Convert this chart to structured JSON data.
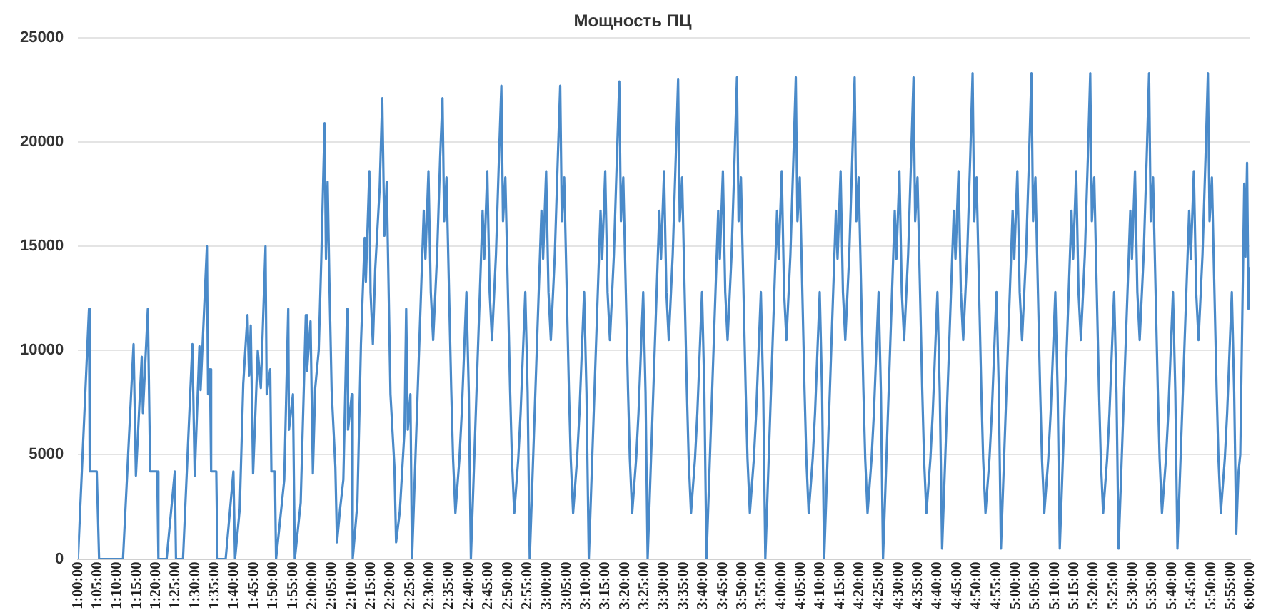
{
  "chart_data": {
    "type": "line",
    "title": "Мощность ПЦ",
    "color": "#4a8ac9",
    "grid": "y",
    "legend": false,
    "marker": "none",
    "line_style": "solid",
    "xlim": [
      1,
      6
    ],
    "ylim": [
      0,
      25000
    ],
    "yticks": [
      0,
      5000,
      10000,
      15000,
      20000,
      25000
    ],
    "xticks": [
      {
        "value": 1,
        "label": "1:00:00"
      },
      {
        "value": 1.083333,
        "label": "1:05:00"
      },
      {
        "value": 1.166667,
        "label": "1:10:00"
      },
      {
        "value": 1.25,
        "label": "1:15:00"
      },
      {
        "value": 1.333333,
        "label": "1:20:00"
      },
      {
        "value": 1.416667,
        "label": "1:25:00"
      },
      {
        "value": 1.5,
        "label": "1:30:00"
      },
      {
        "value": 1.583333,
        "label": "1:35:00"
      },
      {
        "value": 1.666667,
        "label": "1:40:00"
      },
      {
        "value": 1.75,
        "label": "1:45:00"
      },
      {
        "value": 1.833333,
        "label": "1:50:00"
      },
      {
        "value": 1.916667,
        "label": "1:55:00"
      },
      {
        "value": 2,
        "label": "2:00:00"
      },
      {
        "value": 2.083333,
        "label": "2:05:00"
      },
      {
        "value": 2.166667,
        "label": "2:10:00"
      },
      {
        "value": 2.25,
        "label": "2:15:00"
      },
      {
        "value": 2.333333,
        "label": "2:20:00"
      },
      {
        "value": 2.416667,
        "label": "2:25:00"
      },
      {
        "value": 2.5,
        "label": "2:30:00"
      },
      {
        "value": 2.583333,
        "label": "2:35:00"
      },
      {
        "value": 2.666667,
        "label": "2:40:00"
      },
      {
        "value": 2.75,
        "label": "2:45:00"
      },
      {
        "value": 2.833333,
        "label": "2:50:00"
      },
      {
        "value": 2.916667,
        "label": "2:55:00"
      },
      {
        "value": 3,
        "label": "3:00:00"
      },
      {
        "value": 3.083333,
        "label": "3:05:00"
      },
      {
        "value": 3.166667,
        "label": "3:10:00"
      },
      {
        "value": 3.25,
        "label": "3:15:00"
      },
      {
        "value": 3.333333,
        "label": "3:20:00"
      },
      {
        "value": 3.416667,
        "label": "3:25:00"
      },
      {
        "value": 3.5,
        "label": "3:30:00"
      },
      {
        "value": 3.583333,
        "label": "3:35:00"
      },
      {
        "value": 3.666667,
        "label": "3:40:00"
      },
      {
        "value": 3.75,
        "label": "3:45:00"
      },
      {
        "value": 3.833333,
        "label": "3:50:00"
      },
      {
        "value": 3.916667,
        "label": "3:55:00"
      },
      {
        "value": 4,
        "label": "4:00:00"
      },
      {
        "value": 4.083333,
        "label": "4:05:00"
      },
      {
        "value": 4.166667,
        "label": "4:10:00"
      },
      {
        "value": 4.25,
        "label": "4:15:00"
      },
      {
        "value": 4.333333,
        "label": "4:20:00"
      },
      {
        "value": 4.416667,
        "label": "4:25:00"
      },
      {
        "value": 4.5,
        "label": "4:30:00"
      },
      {
        "value": 4.583333,
        "label": "4:35:00"
      },
      {
        "value": 4.666667,
        "label": "4:40:00"
      },
      {
        "value": 4.75,
        "label": "4:45:00"
      },
      {
        "value": 4.833333,
        "label": "4:50:00"
      },
      {
        "value": 4.916667,
        "label": "4:55:00"
      },
      {
        "value": 5,
        "label": "5:00:00"
      },
      {
        "value": 5.083333,
        "label": "5:05:00"
      },
      {
        "value": 5.166667,
        "label": "5:10:00"
      },
      {
        "value": 5.25,
        "label": "5:15:00"
      },
      {
        "value": 5.333333,
        "label": "5:20:00"
      },
      {
        "value": 5.416667,
        "label": "5:25:00"
      },
      {
        "value": 5.5,
        "label": "5:30:00"
      },
      {
        "value": 5.583333,
        "label": "5:35:00"
      },
      {
        "value": 5.666667,
        "label": "5:40:00"
      },
      {
        "value": 5.75,
        "label": "5:45:00"
      },
      {
        "value": 5.833333,
        "label": "5:50:00"
      },
      {
        "value": 5.916667,
        "label": "5:55:00"
      },
      {
        "value": 6,
        "label": "6:00:00"
      }
    ],
    "x": [
      1.0,
      1.047,
      1.05,
      1.08,
      1.09,
      1.192,
      1.237,
      1.247,
      1.272,
      1.277,
      1.298,
      1.308,
      1.338,
      1.343,
      1.378,
      1.413,
      1.418,
      1.448,
      1.488,
      1.498,
      1.518,
      1.523,
      1.55,
      1.555,
      1.563,
      1.568,
      1.59,
      1.595,
      1.63,
      1.663,
      1.67,
      1.69,
      1.705,
      1.723,
      1.73,
      1.737,
      1.747,
      1.767,
      1.78,
      1.8,
      1.805,
      1.82,
      1.825,
      1.84,
      1.845,
      1.88,
      1.897,
      1.9,
      1.917,
      1.925,
      1.95,
      1.972,
      1.977,
      1.992,
      2.002,
      2.012,
      2.027,
      2.038,
      2.052,
      2.058,
      2.065,
      2.072,
      2.082,
      2.098,
      2.105,
      2.118,
      2.132,
      2.148,
      2.152,
      2.168,
      2.172,
      2.192,
      2.207,
      2.223,
      2.228,
      2.243,
      2.248,
      2.258,
      2.268,
      2.287,
      2.298,
      2.307,
      2.317,
      2.333,
      2.35,
      2.357,
      2.373,
      2.393,
      2.4,
      2.407,
      2.418,
      2.425,
      2.475,
      2.482,
      2.495,
      2.505,
      2.515,
      2.532,
      2.545,
      2.555,
      2.562,
      2.572,
      2.592,
      2.6,
      2.61,
      2.627,
      2.637,
      2.657,
      2.667,
      2.676,
      2.726,
      2.733,
      2.746,
      2.756,
      2.766,
      2.783,
      2.796,
      2.806,
      2.813,
      2.823,
      2.843,
      2.851,
      2.861,
      2.878,
      2.888,
      2.908,
      2.918,
      2.927,
      2.977,
      2.984,
      2.997,
      3.007,
      3.017,
      3.034,
      3.047,
      3.057,
      3.064,
      3.074,
      3.094,
      3.102,
      3.112,
      3.129,
      3.139,
      3.159,
      3.169,
      3.179,
      3.229,
      3.236,
      3.249,
      3.259,
      3.269,
      3.286,
      3.299,
      3.309,
      3.316,
      3.326,
      3.346,
      3.354,
      3.364,
      3.381,
      3.391,
      3.411,
      3.421,
      3.43,
      3.48,
      3.487,
      3.5,
      3.51,
      3.52,
      3.537,
      3.55,
      3.56,
      3.567,
      3.577,
      3.597,
      3.605,
      3.615,
      3.632,
      3.642,
      3.662,
      3.672,
      3.681,
      3.731,
      3.738,
      3.751,
      3.761,
      3.771,
      3.788,
      3.801,
      3.811,
      3.818,
      3.828,
      3.848,
      3.856,
      3.866,
      3.883,
      3.893,
      3.913,
      3.923,
      3.932,
      3.982,
      3.989,
      4.002,
      4.012,
      4.022,
      4.039,
      4.052,
      4.062,
      4.069,
      4.079,
      4.099,
      4.107,
      4.117,
      4.134,
      4.144,
      4.164,
      4.174,
      4.183,
      4.233,
      4.24,
      4.253,
      4.263,
      4.273,
      4.29,
      4.303,
      4.313,
      4.32,
      4.33,
      4.35,
      4.358,
      4.368,
      4.385,
      4.395,
      4.415,
      4.425,
      4.434,
      4.484,
      4.491,
      4.504,
      4.514,
      4.524,
      4.541,
      4.554,
      4.564,
      4.571,
      4.581,
      4.601,
      4.609,
      4.619,
      4.636,
      4.646,
      4.666,
      4.676,
      4.686,
      4.736,
      4.743,
      4.756,
      4.766,
      4.776,
      4.793,
      4.806,
      4.816,
      4.823,
      4.833,
      4.853,
      4.861,
      4.871,
      4.888,
      4.898,
      4.918,
      4.928,
      4.937,
      4.987,
      4.994,
      5.007,
      5.017,
      5.027,
      5.044,
      5.057,
      5.067,
      5.074,
      5.084,
      5.104,
      5.112,
      5.122,
      5.139,
      5.149,
      5.169,
      5.179,
      5.188,
      5.238,
      5.245,
      5.258,
      5.268,
      5.278,
      5.295,
      5.308,
      5.318,
      5.325,
      5.335,
      5.355,
      5.363,
      5.373,
      5.39,
      5.4,
      5.42,
      5.43,
      5.439,
      5.489,
      5.496,
      5.509,
      5.519,
      5.529,
      5.546,
      5.559,
      5.569,
      5.576,
      5.586,
      5.606,
      5.614,
      5.624,
      5.641,
      5.651,
      5.671,
      5.681,
      5.69,
      5.74,
      5.747,
      5.76,
      5.77,
      5.78,
      5.797,
      5.81,
      5.82,
      5.827,
      5.837,
      5.857,
      5.865,
      5.875,
      5.892,
      5.902,
      5.922,
      5.932,
      5.941,
      5.95,
      5.958,
      5.975,
      5.98,
      5.987,
      5.993,
      6.0
    ],
    "values": [
      0,
      12000,
      4200,
      4200,
      0,
      0,
      10300,
      4000,
      9700,
      7000,
      12000,
      4200,
      4200,
      0,
      0,
      4200,
      0,
      0,
      10300,
      4000,
      10200,
      8100,
      15000,
      7900,
      9100,
      4200,
      4200,
      0,
      0,
      4200,
      0,
      2400,
      8400,
      11700,
      8800,
      11200,
      4100,
      10000,
      8200,
      15000,
      7900,
      9100,
      4200,
      4200,
      0,
      3800,
      12000,
      6200,
      7900,
      0,
      2700,
      11700,
      9000,
      11400,
      4100,
      8200,
      10000,
      14400,
      20900,
      14400,
      18100,
      13600,
      8100,
      4400,
      800,
      2400,
      3800,
      12000,
      6200,
      7900,
      0,
      2700,
      10300,
      15400,
      13300,
      18600,
      12800,
      10300,
      13900,
      17800,
      22100,
      15500,
      18100,
      7900,
      4400,
      800,
      2300,
      6200,
      12000,
      6200,
      7900,
      0,
      16700,
      14400,
      18600,
      12800,
      10500,
      14600,
      19300,
      22100,
      16200,
      18300,
      8200,
      4800,
      2200,
      4800,
      7000,
      12800,
      8000,
      0,
      16700,
      14400,
      18600,
      12800,
      10500,
      14600,
      19300,
      22700,
      16200,
      18300,
      8200,
      4800,
      2200,
      4800,
      7000,
      12800,
      8000,
      0,
      16700,
      14400,
      18600,
      12800,
      10500,
      14600,
      19300,
      22700,
      16200,
      18300,
      8200,
      4800,
      2200,
      4800,
      7000,
      12800,
      8000,
      0,
      16700,
      14400,
      18600,
      12800,
      10500,
      14600,
      19300,
      22900,
      16200,
      18300,
      8200,
      4800,
      2200,
      4800,
      7000,
      12800,
      8000,
      0,
      16700,
      14400,
      18600,
      12800,
      10500,
      14600,
      19300,
      23000,
      16200,
      18300,
      8200,
      4800,
      2200,
      4800,
      7000,
      12800,
      8000,
      0,
      16700,
      14400,
      18600,
      12800,
      10500,
      14600,
      19300,
      23100,
      16200,
      18300,
      8200,
      4800,
      2200,
      4800,
      7000,
      12800,
      8000,
      0,
      16700,
      14400,
      18600,
      12800,
      10500,
      14600,
      19300,
      23100,
      16200,
      18300,
      8200,
      4800,
      2200,
      4800,
      7000,
      12800,
      8000,
      0,
      16700,
      14400,
      18600,
      12800,
      10500,
      14600,
      19300,
      23100,
      16200,
      18300,
      8200,
      4800,
      2200,
      4800,
      7000,
      12800,
      8000,
      0,
      16700,
      14400,
      18600,
      12800,
      10500,
      14600,
      19300,
      23100,
      16200,
      18300,
      8200,
      4800,
      2200,
      4800,
      7000,
      12800,
      8000,
      500,
      16700,
      14400,
      18600,
      12800,
      10500,
      14600,
      19300,
      23300,
      16200,
      18300,
      8200,
      4800,
      2200,
      4800,
      7000,
      12800,
      8000,
      500,
      16700,
      14400,
      18600,
      12800,
      10500,
      14600,
      19300,
      23300,
      16200,
      18300,
      8200,
      4800,
      2200,
      4800,
      7000,
      12800,
      8000,
      500,
      16700,
      14400,
      18600,
      12800,
      10500,
      14600,
      19300,
      23300,
      16200,
      18300,
      8200,
      4800,
      2200,
      4800,
      7000,
      12800,
      8000,
      500,
      16700,
      14400,
      18600,
      12800,
      10500,
      14600,
      19300,
      23300,
      16200,
      18300,
      8200,
      4800,
      2200,
      4800,
      7000,
      12800,
      8000,
      500,
      16700,
      14400,
      18600,
      12800,
      10500,
      14600,
      19300,
      23300,
      16200,
      18300,
      8200,
      4800,
      2200,
      4800,
      7000,
      12800,
      8000,
      1200,
      4100,
      5000,
      18000,
      14500,
      19000,
      12000,
      14000
    ]
  }
}
